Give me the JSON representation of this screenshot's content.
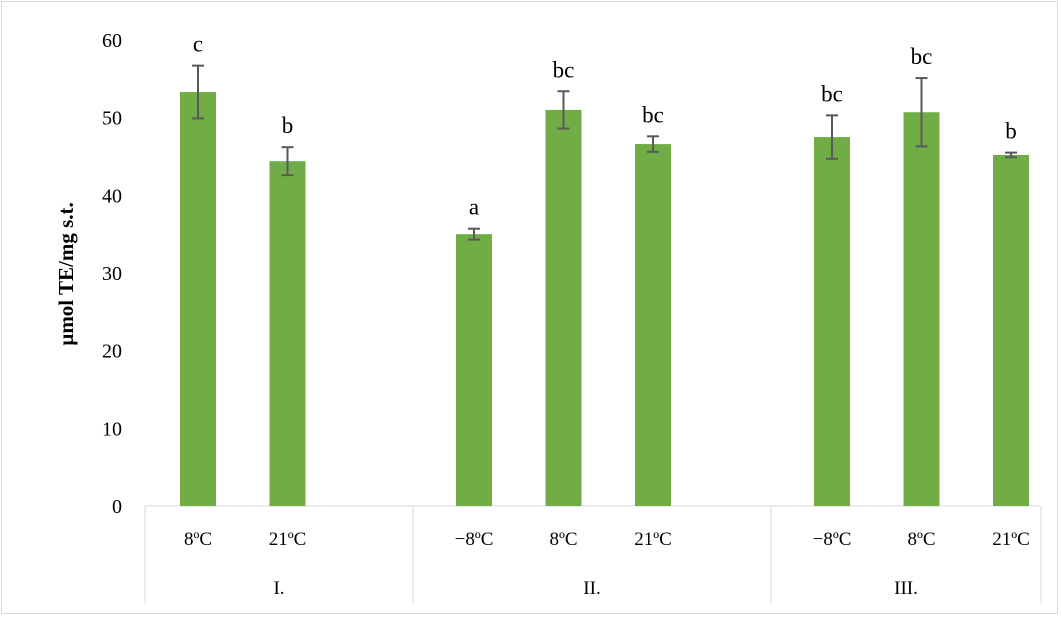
{
  "chart_data": {
    "type": "bar",
    "title": "",
    "xlabel": "",
    "ylabel": "µmol TE/mg s.t.",
    "ylim": [
      0,
      60
    ],
    "yticks": [
      0,
      10,
      20,
      30,
      40,
      50,
      60
    ],
    "grid": false,
    "legend": "none",
    "bar_color": "#70ad47",
    "error_bar_color": "#595959",
    "groups": [
      {
        "label": "I.",
        "bars": [
          {
            "category": "8ºC",
            "value": 53.3,
            "error": 3.4,
            "letter": "c"
          },
          {
            "category": "21ºC",
            "value": 44.4,
            "error": 1.8,
            "letter": "b"
          }
        ]
      },
      {
        "label": "II.",
        "bars": [
          {
            "category": "−8ºC",
            "value": 35.0,
            "error": 0.7,
            "letter": "a"
          },
          {
            "category": "8ºC",
            "value": 51.0,
            "error": 2.4,
            "letter": "bc"
          },
          {
            "category": "21ºC",
            "value": 46.6,
            "error": 1.0,
            "letter": "bc"
          }
        ]
      },
      {
        "label": "III.",
        "bars": [
          {
            "category": "−8ºC",
            "value": 47.5,
            "error": 2.8,
            "letter": "bc"
          },
          {
            "category": "8ºC",
            "value": 50.7,
            "error": 4.4,
            "letter": "bc"
          },
          {
            "category": "21ºC",
            "value": 45.2,
            "error": 0.3,
            "letter": "b"
          }
        ]
      }
    ]
  }
}
